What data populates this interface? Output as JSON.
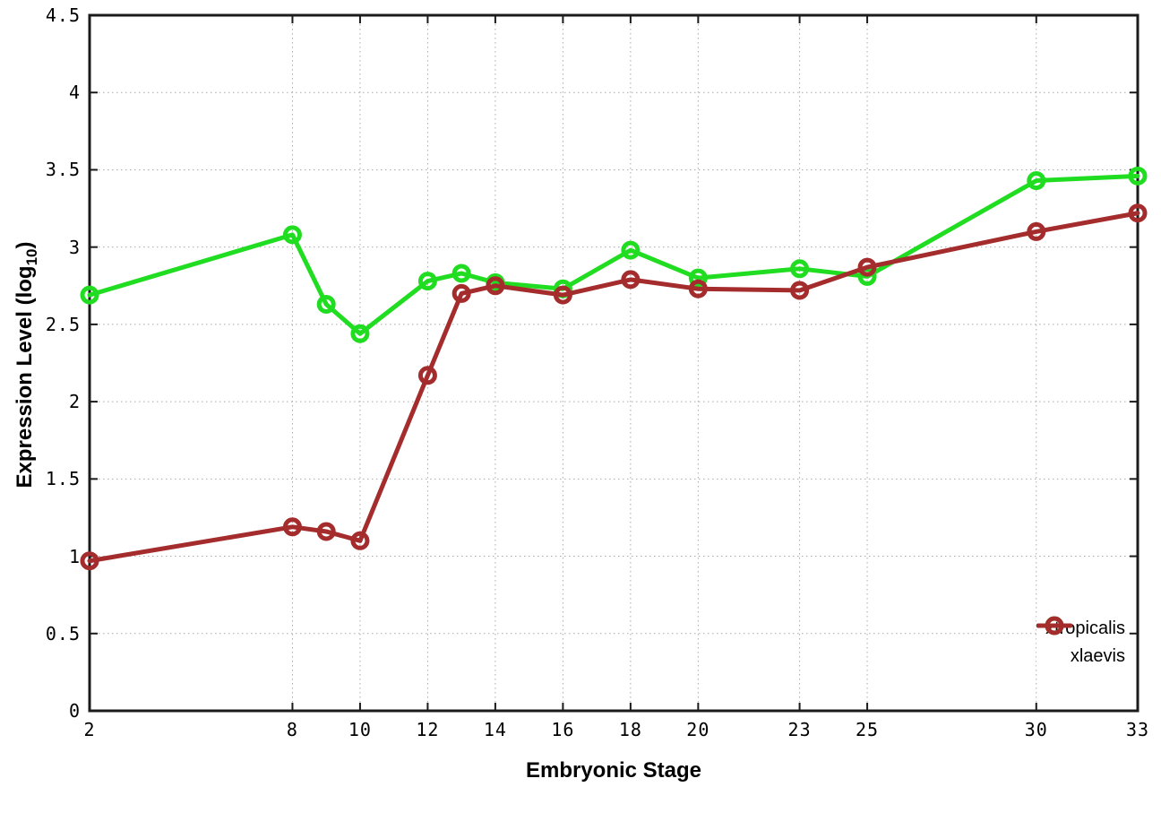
{
  "axis": {
    "x_title": "Embryonic Stage",
    "y_title_prefix": "Expression Level (log",
    "y_title_sub": "10",
    "y_title_suffix": ")"
  },
  "chart_data": {
    "type": "line",
    "title": "",
    "xlabel": "Embryonic Stage",
    "ylabel": "Expression Level (log10)",
    "x": [
      2,
      8,
      9,
      10,
      12,
      13,
      14,
      16,
      18,
      20,
      23,
      25,
      30,
      33
    ],
    "series": [
      {
        "name": "xtropicalis",
        "color": "#21dd21",
        "values": [
          2.69,
          3.08,
          2.63,
          2.44,
          2.78,
          2.83,
          2.77,
          2.73,
          2.98,
          2.8,
          2.86,
          2.81,
          3.43,
          3.46
        ]
      },
      {
        "name": "xlaevis",
        "color": "#a42c2c",
        "values": [
          0.97,
          1.19,
          1.16,
          1.1,
          2.17,
          2.7,
          2.75,
          2.69,
          2.79,
          2.73,
          2.72,
          2.87,
          3.1,
          3.22
        ]
      }
    ],
    "x_ticks": [
      2,
      8,
      10,
      12,
      14,
      16,
      18,
      20,
      23,
      25,
      30,
      33
    ],
    "y_ticks": [
      0,
      0.5,
      1,
      1.5,
      2,
      2.5,
      3,
      3.5,
      4,
      4.5
    ],
    "xlim": [
      2,
      33
    ],
    "ylim": [
      0,
      4.5
    ],
    "grid": true,
    "marker": "open-circle",
    "legend_position": "bottom-right"
  }
}
